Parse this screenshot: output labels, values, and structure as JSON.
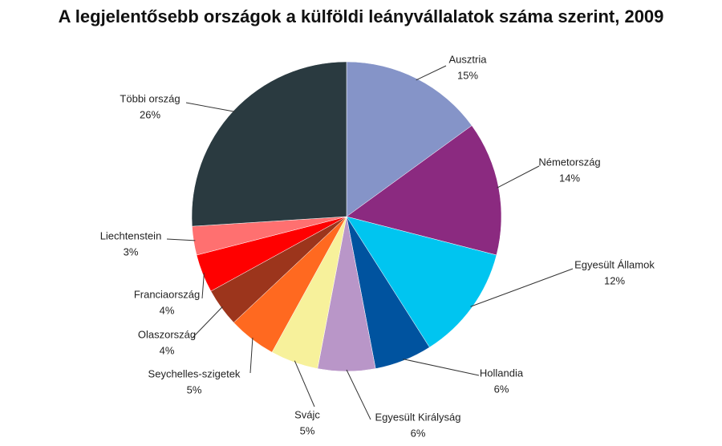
{
  "chart_data": {
    "type": "pie",
    "title": "A legjelentősebb országok a külföldi leányvállalatok száma szerint, 2009",
    "categories": [
      "Ausztria",
      "Németország",
      "Egyesült Államok",
      "Hollandia",
      "Egyesült Királyság",
      "Svájc",
      "Seychelles-szigetek",
      "Olaszország",
      "Franciaország",
      "Liechtenstein",
      "Többi ország"
    ],
    "values": [
      15,
      14,
      12,
      6,
      6,
      5,
      5,
      4,
      4,
      3,
      26
    ],
    "value_labels": [
      "15%",
      "14%",
      "12%",
      "6%",
      "6%",
      "5%",
      "5%",
      "4%",
      "4%",
      "3%",
      "26%"
    ],
    "colors": [
      "#8594c8",
      "#8b2a80",
      "#00c5f0",
      "#00539f",
      "#b996c8",
      "#f7f19b",
      "#ff6920",
      "#9c351c",
      "#ff0000",
      "#ff7070",
      "#2a3a40"
    ]
  }
}
